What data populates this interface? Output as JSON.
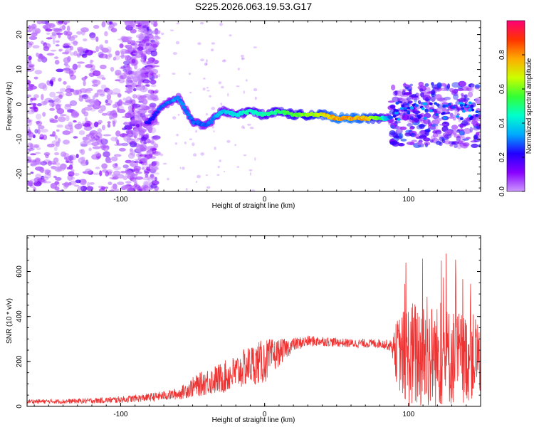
{
  "title": "S225.2026.063.19.53.G17",
  "chart_data": [
    {
      "type": "heatmap",
      "title": "S225.2026.063.19.53.G17",
      "xlabel": "Height of straight line (km)",
      "ylabel": "Frequency (Hz)",
      "xlim": [
        -165,
        150
      ],
      "ylim": [
        -25,
        24
      ],
      "xticks": [
        -100,
        0,
        100
      ],
      "xtick_labels": [
        "-100",
        "0",
        "100"
      ],
      "yticks": [
        -20,
        -10,
        0,
        10,
        20
      ],
      "ytick_labels": [
        "-20",
        "-10",
        "0",
        "10",
        "20"
      ],
      "colorbar": {
        "label": "Normalized spectral amplitude",
        "range": [
          0.0,
          1.0
        ],
        "ticks": [
          0.0,
          0.2,
          0.4,
          0.6,
          0.8
        ],
        "tick_labels": [
          "0.0",
          "0.2",
          "0.4",
          "0.6",
          "0.8"
        ],
        "colormap_stops": [
          "#cc99ff",
          "#8800ff",
          "#2200ff",
          "#00aaff",
          "#00ffcc",
          "#33ff33",
          "#ccff00",
          "#ffaa00",
          "#ff3300",
          "#ff0077"
        ]
      },
      "ridge": {
        "x": [
          -80,
          -70,
          -60,
          -50,
          -40,
          -30,
          -20,
          -10,
          0,
          10,
          20,
          30,
          40,
          50,
          60,
          70,
          80,
          87
        ],
        "frequency": [
          -5,
          0,
          2,
          -5,
          -6,
          -2,
          -3,
          -2,
          -3,
          -2,
          -3,
          -3,
          -3,
          -4,
          -4,
          -4,
          -4,
          -4
        ],
        "amplitude": [
          0.25,
          0.3,
          0.35,
          0.3,
          0.3,
          0.4,
          0.45,
          0.5,
          0.5,
          0.55,
          0.6,
          0.65,
          0.75,
          0.85,
          0.85,
          0.8,
          0.6,
          0.3
        ]
      }
    },
    {
      "type": "line",
      "xlabel": "Height of straight line (km)",
      "ylabel": "SNR (10 * v/v)",
      "xlim": [
        -165,
        150
      ],
      "ylim": [
        0,
        760
      ],
      "xticks": [
        -100,
        0,
        100
      ],
      "xtick_labels": [
        "-100",
        "0",
        "100"
      ],
      "yticks": [
        0,
        200,
        400,
        600
      ],
      "ytick_labels": [
        "0",
        "200",
        "400",
        "600"
      ],
      "series": [
        {
          "name": "SNR",
          "color": "#ee3333",
          "x": [
            -165,
            -140,
            -120,
            -100,
            -80,
            -60,
            -50,
            -40,
            -30,
            -20,
            -10,
            0,
            10,
            20,
            30,
            40,
            50,
            60,
            70,
            80,
            88,
            92,
            100,
            110,
            120,
            130,
            140,
            150
          ],
          "y": [
            22,
            22,
            25,
            30,
            40,
            55,
            85,
            110,
            125,
            150,
            185,
            200,
            240,
            275,
            290,
            290,
            285,
            280,
            280,
            280,
            270,
            240,
            220,
            230,
            220,
            220,
            215,
            230
          ],
          "spread": [
            10,
            10,
            12,
            15,
            18,
            25,
            45,
            60,
            70,
            80,
            90,
            100,
            60,
            30,
            25,
            22,
            20,
            20,
            20,
            20,
            25,
            150,
            250,
            250,
            230,
            220,
            200,
            180
          ]
        }
      ]
    }
  ]
}
